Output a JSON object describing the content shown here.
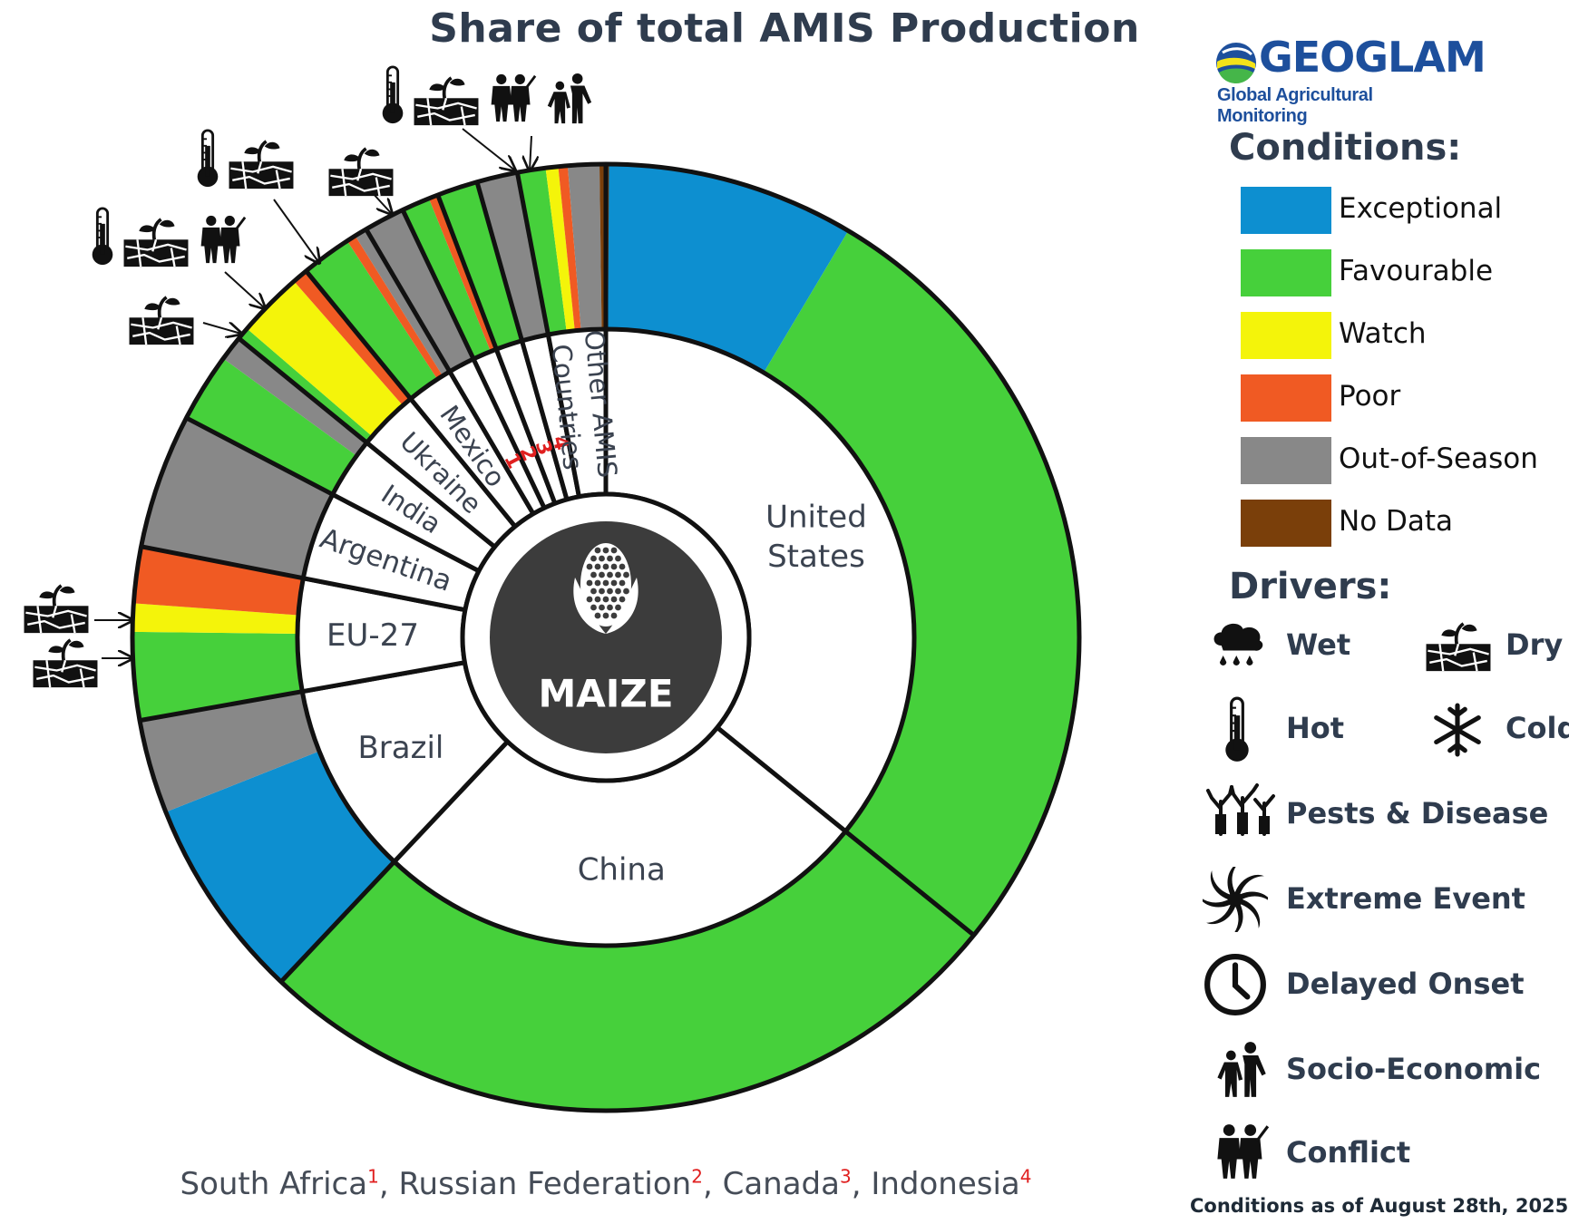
{
  "chart_data": {
    "type": "pie",
    "title": "Share of total AMIS Production",
    "center_label": "MAIZE",
    "countries": [
      {
        "name": "United States",
        "label": "United\nStates",
        "share": 33.5
      },
      {
        "name": "China",
        "label": "China",
        "share": 24.5
      },
      {
        "name": "Brazil",
        "label": "Brazil",
        "share": 9.5
      },
      {
        "name": "EU-27",
        "label": "EU-27",
        "share": 5.5
      },
      {
        "name": "Argentina",
        "label": "Argentina",
        "share": 4.3
      },
      {
        "name": "India",
        "label": "India",
        "share": 3.0
      },
      {
        "name": "Ukraine",
        "label": "Ukraine",
        "share": 3.0
      },
      {
        "name": "Mexico",
        "label": "Mexico",
        "share": 2.3
      },
      {
        "name": "South Africa",
        "label": "1",
        "share": 1.3
      },
      {
        "name": "Russian Federation",
        "label": "2",
        "share": 1.2
      },
      {
        "name": "Canada",
        "label": "3",
        "share": 1.3
      },
      {
        "name": "Indonesia",
        "label": "4",
        "share": 1.3
      },
      {
        "name": "Other AMIS Countries",
        "label": "Other AMIS\nCountries",
        "share": 2.8
      }
    ],
    "conditions_outer_ring": [
      {
        "country": "United States",
        "condition": "Exceptional",
        "share": 8.0
      },
      {
        "country": "United States",
        "condition": "Favourable",
        "share": 25.5
      },
      {
        "country": "China",
        "condition": "Favourable",
        "share": 24.5
      },
      {
        "country": "Brazil",
        "condition": "Exceptional",
        "share": 6.5
      },
      {
        "country": "Brazil",
        "condition": "Out-of-Season",
        "share": 3.0
      },
      {
        "country": "EU-27",
        "condition": "Favourable",
        "share": 2.8
      },
      {
        "country": "EU-27",
        "condition": "Watch",
        "share": 0.9
      },
      {
        "country": "EU-27",
        "condition": "Poor",
        "share": 1.8
      },
      {
        "country": "Argentina",
        "condition": "Out-of-Season",
        "share": 4.3
      },
      {
        "country": "India",
        "condition": "Favourable",
        "share": 2.2
      },
      {
        "country": "India",
        "condition": "Out-of-Season",
        "share": 0.8
      },
      {
        "country": "Ukraine",
        "condition": "Favourable",
        "share": 0.4
      },
      {
        "country": "Ukraine",
        "condition": "Watch",
        "share": 2.1
      },
      {
        "country": "Ukraine",
        "condition": "Poor",
        "share": 0.5
      },
      {
        "country": "Mexico",
        "condition": "Favourable",
        "share": 1.6
      },
      {
        "country": "Mexico",
        "condition": "Poor",
        "share": 0.3
      },
      {
        "country": "Mexico",
        "condition": "Out-of-Season",
        "share": 0.4
      },
      {
        "country": "South Africa",
        "condition": "Out-of-Season",
        "share": 1.3
      },
      {
        "country": "Russian Federation",
        "condition": "Favourable",
        "share": 0.9
      },
      {
        "country": "Russian Federation",
        "condition": "Poor",
        "share": 0.3
      },
      {
        "country": "Canada",
        "condition": "Favourable",
        "share": 1.3
      },
      {
        "country": "Indonesia",
        "condition": "Out-of-Season",
        "share": 1.3
      },
      {
        "country": "Other AMIS Countries",
        "condition": "Favourable",
        "share": 0.9
      },
      {
        "country": "Other AMIS Countries",
        "condition": "Watch",
        "share": 0.4
      },
      {
        "country": "Other AMIS Countries",
        "condition": "Poor",
        "share": 0.3
      },
      {
        "country": "Other AMIS Countries",
        "condition": "Out-of-Season",
        "share": 1.0
      },
      {
        "country": "Other AMIS Countries",
        "condition": "No Data",
        "share": 0.3
      }
    ],
    "driver_annotations": [
      {
        "country": "Russian Federation",
        "drivers": [
          "dry-icon"
        ]
      },
      {
        "country": "Mexico",
        "drivers": [
          "hot-icon",
          "dry-icon"
        ]
      },
      {
        "country": "Ukraine",
        "drivers": [
          "hot-icon",
          "dry-icon",
          "conflict-icon"
        ]
      },
      {
        "country": "Ukraine",
        "drivers": [
          "dry-icon"
        ]
      },
      {
        "country": "Other AMIS Countries",
        "drivers": [
          "hot-icon",
          "dry-icon",
          "conflict-icon",
          "socio-economic-icon"
        ]
      },
      {
        "country": "EU-27",
        "drivers": [
          "dry-icon"
        ]
      },
      {
        "country": "EU-27",
        "drivers": [
          "dry-icon"
        ]
      }
    ],
    "footnote": [
      {
        "name": "South Africa",
        "mark": "1"
      },
      {
        "name": "Russian Federation",
        "mark": "2"
      },
      {
        "name": "Canada",
        "mark": "3"
      },
      {
        "name": "Indonesia",
        "mark": "4"
      }
    ]
  },
  "colors": {
    "Exceptional": "#0d8fd0",
    "Favourable": "#46d03b",
    "Watch": "#f4f40a",
    "Poor": "#f05a23",
    "Out-of-Season": "#888888",
    "No Data": "#7a3f0a",
    "hub": "#3c3c3c",
    "title": "#2f3c4e"
  },
  "legend": {
    "logo_text": "GEOGLAM",
    "logo_subtitle": "Global Agricultural Monitoring",
    "conditions_title": "Conditions:",
    "conditions": [
      "Exceptional",
      "Favourable",
      "Watch",
      "Poor",
      "Out-of-Season",
      "No Data"
    ],
    "drivers_title": "Drivers:",
    "drivers": [
      {
        "label": "Wet",
        "icon": "wet-icon"
      },
      {
        "label": "Dry",
        "icon": "dry-icon"
      },
      {
        "label": "Hot",
        "icon": "hot-icon"
      },
      {
        "label": "Cold",
        "icon": "cold-icon"
      },
      {
        "label": "Pests & Disease",
        "icon": "pests-disease-icon"
      },
      {
        "label": "Extreme Event",
        "icon": "extreme-event-icon"
      },
      {
        "label": "Delayed Onset",
        "icon": "delayed-onset-icon"
      },
      {
        "label": "Socio-Economic",
        "icon": "socio-economic-icon"
      },
      {
        "label": "Conflict",
        "icon": "conflict-icon"
      }
    ]
  },
  "dateline": "Conditions as of August 28th, 2025"
}
